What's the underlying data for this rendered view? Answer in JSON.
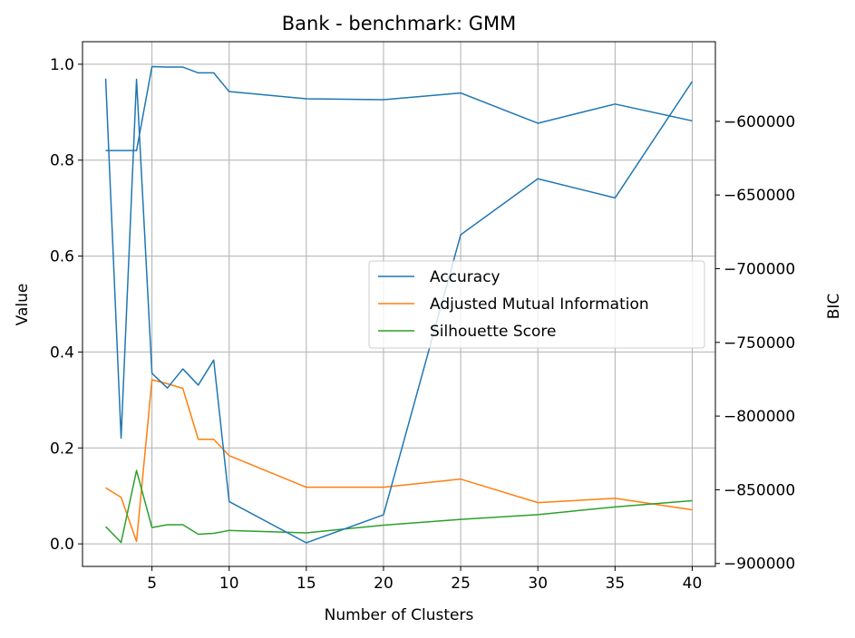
{
  "chart_data": {
    "type": "line",
    "title": "Bank - benchmark: GMM",
    "xlabel": "Number of Clusters",
    "ylabel": "Value",
    "y2label": "BIC",
    "grid": true,
    "legend_position": "center-right",
    "x": [
      2,
      3,
      4,
      5,
      6,
      7,
      8,
      9,
      10,
      15,
      20,
      25,
      30,
      35,
      40
    ],
    "xlim": [
      0.5,
      41.5
    ],
    "ylim": [
      -0.047,
      1.047
    ],
    "y2lim": [
      -902000,
      -546000
    ],
    "xticks": [
      5,
      10,
      15,
      20,
      25,
      30,
      35,
      40
    ],
    "xtick_labels": [
      "5",
      "10",
      "15",
      "20",
      "25",
      "30",
      "35",
      "40"
    ],
    "yticks": [
      0.0,
      0.2,
      0.4,
      0.6,
      0.8,
      1.0
    ],
    "ytick_labels": [
      "0.0",
      "0.2",
      "0.4",
      "0.6",
      "0.8",
      "1.0"
    ],
    "y2ticks": [
      -600000,
      -650000,
      -700000,
      -750000,
      -800000,
      -850000,
      -900000
    ],
    "y2tick_labels": [
      "−600000",
      "−650000",
      "−700000",
      "−750000",
      "−800000",
      "−850000",
      "−900000"
    ],
    "series": [
      {
        "name": "Accuracy",
        "axis": "left",
        "color": "#1f77b4",
        "values": [
          0.82,
          0.82,
          0.82,
          0.995,
          0.994,
          0.994,
          0.982,
          0.982,
          0.943,
          0.928,
          0.926,
          0.94,
          0.877,
          0.917,
          0.882
        ]
      },
      {
        "name": "Adjusted Mutual Information",
        "axis": "left",
        "color": "#ff7f0e",
        "values": [
          0.117,
          0.097,
          0.005,
          0.342,
          0.334,
          0.324,
          0.218,
          0.218,
          0.184,
          0.118,
          0.118,
          0.135,
          0.086,
          0.095,
          0.071
        ]
      },
      {
        "name": "Silhouette Score",
        "axis": "left",
        "color": "#2ca02c",
        "values": [
          0.036,
          0.003,
          0.153,
          0.034,
          0.04,
          0.04,
          0.02,
          0.022,
          0.028,
          0.023,
          0.039,
          0.051,
          0.061,
          0.077,
          0.09
        ]
      },
      {
        "name": "",
        "axis": "right",
        "color": "#1f77b4",
        "values": [
          -571000,
          -815000,
          -571500,
          -771000,
          -781000,
          -768000,
          -779000,
          -762000,
          -858000,
          -886000,
          -867000,
          -677000,
          -639000,
          -652000,
          -573000
        ]
      }
    ]
  }
}
